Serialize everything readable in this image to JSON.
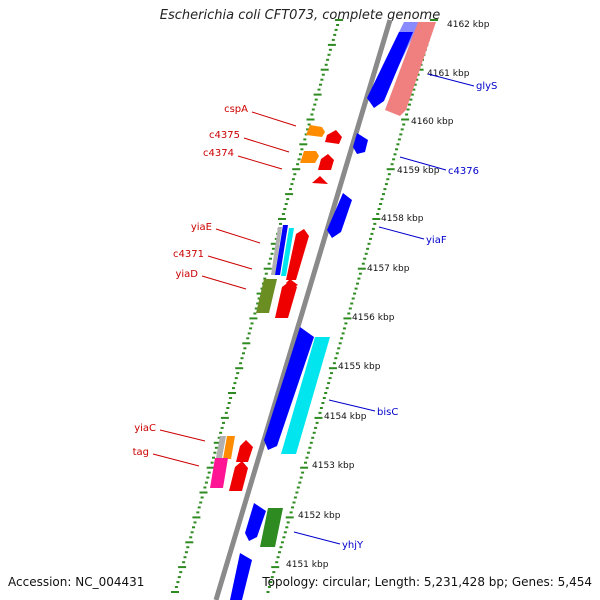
{
  "title": "Escherichia coli CFT073, complete genome",
  "footer": {
    "accession": "Accession: NC_004431",
    "topology": "Topology: circular; Length: 5,231,428 bp; Genes: 5,454"
  },
  "colors": {
    "forward_label": "#cc0000",
    "reverse_label": "#0000cc",
    "backbone": "#8a8a8a",
    "tick": "#2e8b22"
  },
  "scale_labels": [
    "4162 kbp",
    "4161 kbp",
    "4160 kbp",
    "4159 kbp",
    "4158 kbp",
    "4157 kbp",
    "4156 kbp",
    "4155 kbp",
    "4154 kbp",
    "4153 kbp",
    "4152 kbp",
    "4151 kbp"
  ],
  "forward_gene_labels": [
    "cspA",
    "c4375",
    "c4374",
    "yiaE",
    "c4371",
    "yiaD",
    "yiaC",
    "tag"
  ],
  "reverse_gene_labels": [
    "glyS",
    "c4376",
    "yiaF",
    "bisC",
    "yhjY"
  ]
}
